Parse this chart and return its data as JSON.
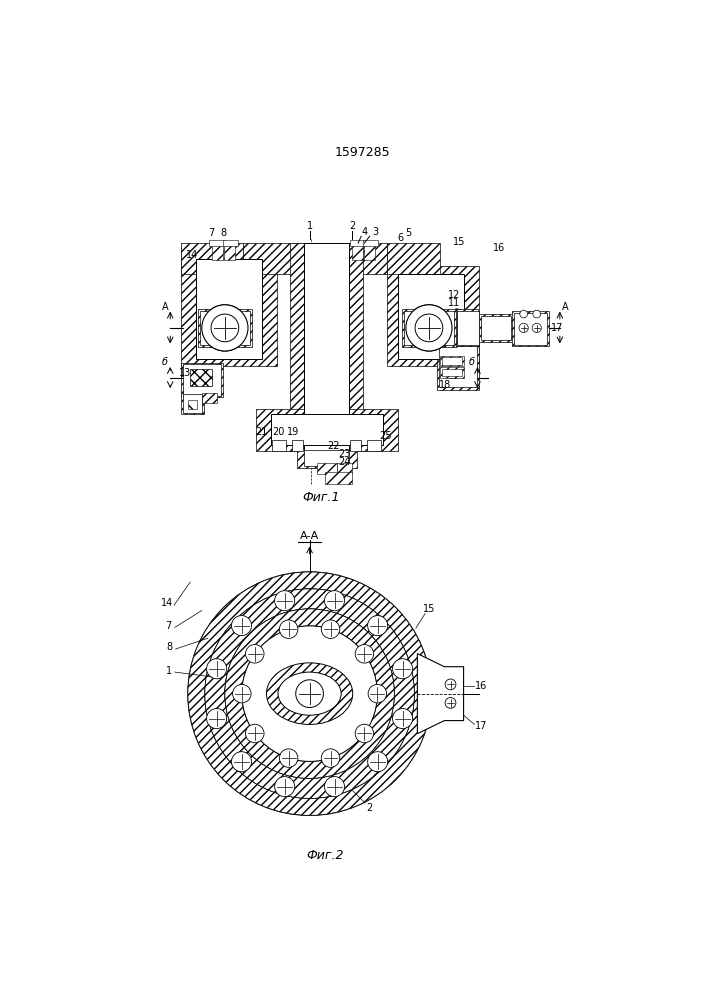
{
  "title": "1597285",
  "fig1_label": "Фиг.1",
  "fig2_label": "Фиг.2",
  "section_label": "А-А",
  "bg_color": "#ffffff"
}
